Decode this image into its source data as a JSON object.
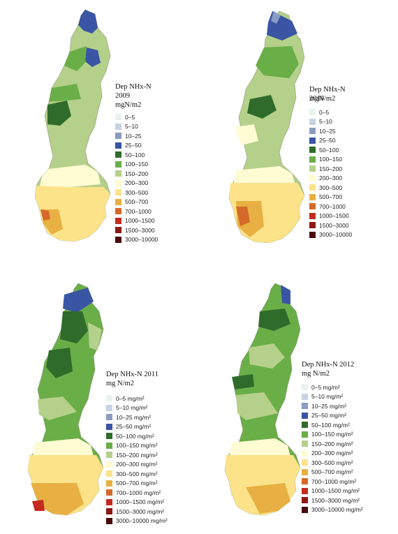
{
  "panels": [
    {
      "title": "Dep NHx-N 2009",
      "unit": "mgN/m2",
      "legend": [
        "0–5",
        "5–10",
        "10–25",
        "25–50",
        "50–100",
        "100–150",
        "150–200",
        "200–300",
        "300–500",
        "500–700",
        "700–1000",
        "1000–1500",
        "1500–3000",
        "3000–10000"
      ]
    },
    {
      "title": "Dep NHx-N 2010",
      "unit": "mgN/m2",
      "legend": [
        "0–5",
        "5–10",
        "10–25",
        "25–50",
        "50–100",
        "100–150",
        "150–200",
        "200–300",
        "300–500",
        "500–700",
        "700–1000",
        "1000–1500",
        "1500–3000",
        "3000–10000"
      ]
    },
    {
      "title": "Dep NHx-N 2011",
      "unit": "mg N/m2",
      "legend": [
        "0–5 mg/m²",
        "5–10 mg/m²",
        "10–25 mg/m²",
        "25–50 mg/m²",
        "50–100 mg/m²",
        "100–150 mg/m²",
        "150–200 mg/m²",
        "200–300 mg/m²",
        "300–500 mg/m²",
        "500–700 mg/m²",
        "700–1000 mg/m²",
        "1000–1500 mg/m²",
        "1500–3000 mg/m²",
        "3000–10000 mg/m²"
      ]
    },
    {
      "title": "Dep NHx-N 2012",
      "unit": "mg N/m2",
      "legend": [
        "0–5 mg/m²",
        "5–10 mg/m²",
        "10–25 mg/m²",
        "25–50 mg/m²",
        "50–100 mg/m²",
        "100–150 mg/m²",
        "150–200 mg/m²",
        "200–300 mg/m²",
        "300–500 mg/m²",
        "500–700 mg/m²",
        "700–1000 mg/m²",
        "1000–1500 mg/m²",
        "1500–3000 mg/m²",
        "3000–10000 mg/m²"
      ]
    }
  ],
  "legend_colors": [
    "#e8f3ee",
    "#c6d3e2",
    "#8a9bc4",
    "#3a55a4",
    "#2f6b2a",
    "#6aae48",
    "#b5d08a",
    "#fffbd2",
    "#fce38a",
    "#e8b042",
    "#d5692a",
    "#c42a1e",
    "#8e1714",
    "#4a0a0a"
  ]
}
